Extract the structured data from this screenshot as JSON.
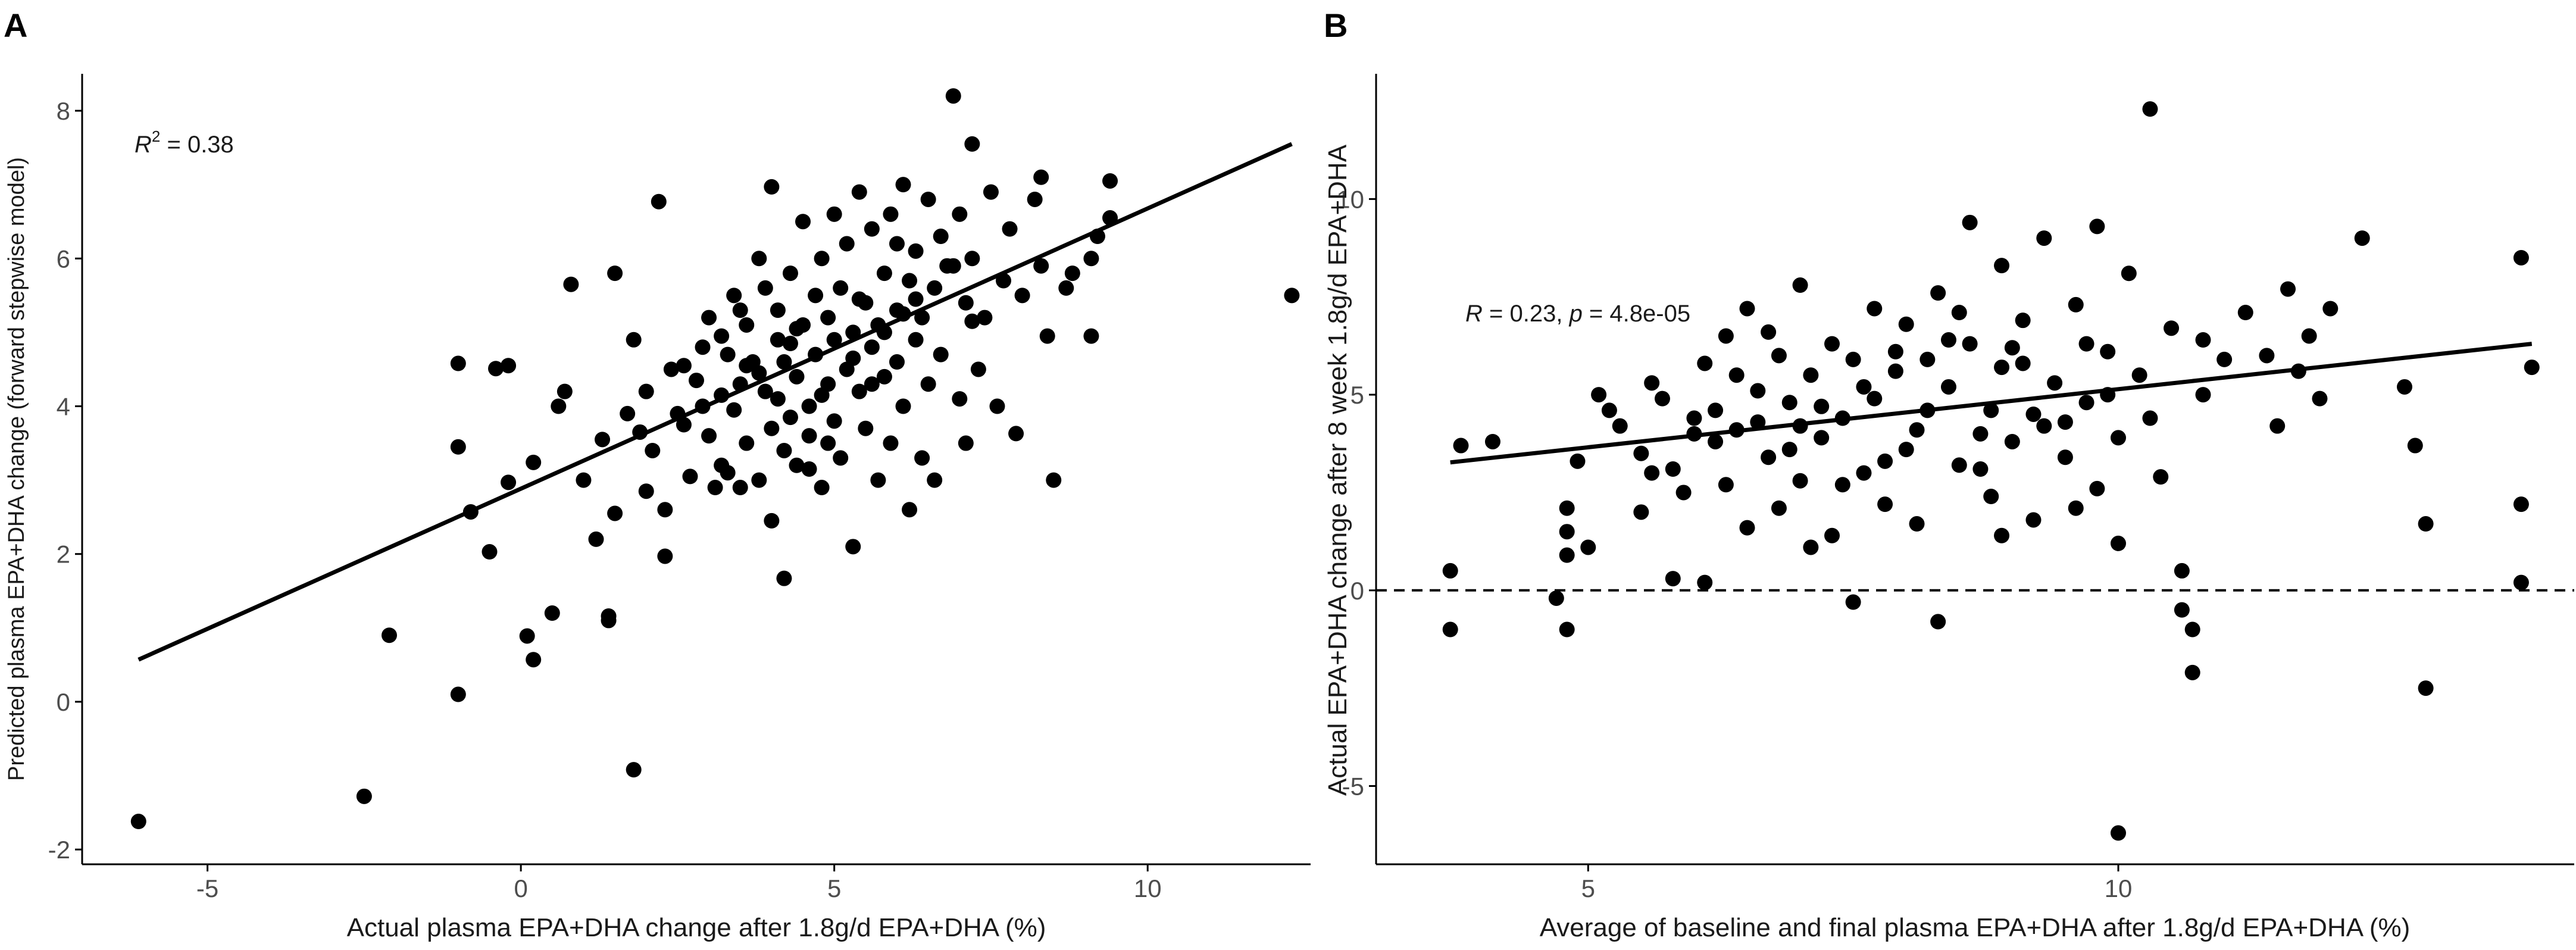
{
  "chart_data": [
    {
      "type": "scatter",
      "panel": "A",
      "xlabel": "Actual plasma EPA+DHA change after 1.8g/d EPA+DHA (%)",
      "ylabel": "Predicted plasma EPA+DHA change (forward stepwise model)",
      "xlim": [
        -7,
        12.6
      ],
      "ylim": [
        -2.2,
        8.5
      ],
      "xticks": [
        -5,
        0,
        5,
        10
      ],
      "yticks": [
        -2,
        0,
        2,
        4,
        6,
        8
      ],
      "annotation": {
        "prefix": "R",
        "sup": "2",
        "text": " = 0.38"
      },
      "regression_line": {
        "x": [
          -6.1,
          12.3
        ],
        "y": [
          0.57,
          7.55
        ]
      },
      "points": [
        [
          -6.1,
          -1.62
        ],
        [
          -2.5,
          -1.28
        ],
        [
          -2.1,
          0.9
        ],
        [
          -1.0,
          4.58
        ],
        [
          -1.0,
          3.45
        ],
        [
          -1.0,
          0.1
        ],
        [
          -0.8,
          2.57
        ],
        [
          -0.5,
          2.03
        ],
        [
          -0.4,
          4.51
        ],
        [
          -0.2,
          4.55
        ],
        [
          -0.2,
          2.97
        ],
        [
          0.1,
          0.89
        ],
        [
          0.2,
          3.24
        ],
        [
          0.2,
          0.57
        ],
        [
          0.5,
          1.2
        ],
        [
          0.6,
          4.0
        ],
        [
          0.7,
          4.2
        ],
        [
          0.8,
          5.65
        ],
        [
          1.0,
          3.0
        ],
        [
          1.2,
          2.2
        ],
        [
          1.3,
          3.55
        ],
        [
          1.4,
          1.1
        ],
        [
          1.4,
          1.16
        ],
        [
          1.5,
          5.8
        ],
        [
          1.5,
          2.55
        ],
        [
          1.7,
          3.9
        ],
        [
          1.8,
          -0.92
        ],
        [
          1.8,
          4.9
        ],
        [
          1.9,
          3.65
        ],
        [
          2.0,
          2.85
        ],
        [
          2.0,
          4.2
        ],
        [
          2.1,
          3.4
        ],
        [
          2.2,
          6.77
        ],
        [
          2.3,
          1.97
        ],
        [
          2.3,
          2.6
        ],
        [
          2.4,
          4.5
        ],
        [
          2.5,
          3.9
        ],
        [
          2.6,
          4.55
        ],
        [
          2.7,
          3.05
        ],
        [
          2.8,
          4.35
        ],
        [
          2.9,
          4.0
        ],
        [
          3.0,
          5.2
        ],
        [
          3.0,
          3.6
        ],
        [
          3.1,
          2.9
        ],
        [
          3.2,
          4.95
        ],
        [
          3.2,
          3.2
        ],
        [
          3.3,
          4.7
        ],
        [
          3.4,
          5.5
        ],
        [
          3.4,
          3.95
        ],
        [
          3.5,
          4.3
        ],
        [
          3.5,
          2.9
        ],
        [
          3.6,
          5.1
        ],
        [
          3.6,
          3.5
        ],
        [
          3.7,
          4.6
        ],
        [
          3.8,
          6.0
        ],
        [
          3.8,
          3.0
        ],
        [
          3.9,
          4.2
        ],
        [
          3.9,
          5.6
        ],
        [
          4.0,
          3.7
        ],
        [
          4.0,
          2.45
        ],
        [
          4.0,
          6.97
        ],
        [
          4.1,
          4.1
        ],
        [
          4.1,
          5.3
        ],
        [
          4.2,
          1.67
        ],
        [
          4.2,
          4.6
        ],
        [
          4.3,
          3.85
        ],
        [
          4.3,
          5.8
        ],
        [
          4.4,
          4.4
        ],
        [
          4.4,
          3.2
        ],
        [
          4.5,
          5.1
        ],
        [
          4.5,
          6.5
        ],
        [
          4.6,
          4.0
        ],
        [
          4.6,
          3.6
        ],
        [
          4.7,
          5.5
        ],
        [
          4.7,
          4.7
        ],
        [
          4.8,
          2.9
        ],
        [
          4.8,
          6.0
        ],
        [
          4.9,
          4.3
        ],
        [
          4.9,
          5.2
        ],
        [
          5.0,
          3.8
        ],
        [
          5.0,
          4.9
        ],
        [
          5.1,
          5.6
        ],
        [
          5.1,
          3.3
        ],
        [
          5.2,
          6.2
        ],
        [
          5.2,
          4.5
        ],
        [
          5.3,
          2.1
        ],
        [
          5.3,
          5.0
        ],
        [
          5.4,
          4.2
        ],
        [
          5.4,
          6.9
        ],
        [
          5.5,
          5.4
        ],
        [
          5.5,
          3.7
        ],
        [
          5.6,
          4.8
        ],
        [
          5.6,
          6.4
        ],
        [
          5.7,
          5.1
        ],
        [
          5.7,
          3.0
        ],
        [
          5.8,
          4.4
        ],
        [
          5.8,
          5.8
        ],
        [
          5.9,
          6.6
        ],
        [
          5.9,
          3.5
        ],
        [
          6.0,
          4.6
        ],
        [
          6.0,
          5.3
        ],
        [
          6.1,
          7.0
        ],
        [
          6.1,
          4.0
        ],
        [
          6.2,
          5.7
        ],
        [
          6.2,
          2.6
        ],
        [
          6.3,
          4.9
        ],
        [
          6.3,
          6.1
        ],
        [
          6.4,
          5.2
        ],
        [
          6.4,
          3.3
        ],
        [
          6.5,
          6.8
        ],
        [
          6.5,
          4.3
        ],
        [
          6.6,
          5.6
        ],
        [
          6.6,
          3.0
        ],
        [
          6.7,
          6.3
        ],
        [
          6.7,
          4.7
        ],
        [
          6.8,
          5.9
        ],
        [
          6.9,
          8.2
        ],
        [
          7.0,
          4.1
        ],
        [
          7.0,
          6.6
        ],
        [
          7.1,
          5.4
        ],
        [
          7.1,
          3.5
        ],
        [
          7.2,
          7.55
        ],
        [
          7.2,
          6.0
        ],
        [
          7.3,
          4.5
        ],
        [
          7.4,
          5.2
        ],
        [
          7.5,
          6.9
        ],
        [
          7.6,
          4.0
        ],
        [
          7.7,
          5.7
        ],
        [
          7.8,
          6.4
        ],
        [
          7.9,
          3.63
        ],
        [
          8.0,
          5.5
        ],
        [
          8.2,
          6.8
        ],
        [
          8.3,
          5.9
        ],
        [
          8.3,
          7.1
        ],
        [
          8.4,
          4.95
        ],
        [
          8.5,
          3.0
        ],
        [
          8.7,
          5.6
        ],
        [
          8.8,
          5.8
        ],
        [
          9.1,
          4.95
        ],
        [
          9.1,
          6.0
        ],
        [
          9.2,
          6.3
        ],
        [
          9.4,
          6.55
        ],
        [
          9.4,
          7.05
        ],
        [
          12.3,
          5.5
        ],
        [
          3.2,
          4.15
        ],
        [
          3.6,
          4.55
        ],
        [
          4.1,
          4.9
        ],
        [
          4.4,
          5.05
        ],
        [
          4.9,
          3.5
        ],
        [
          5.3,
          4.65
        ],
        [
          5.8,
          5.0
        ],
        [
          6.1,
          5.25
        ],
        [
          2.6,
          3.75
        ],
        [
          2.9,
          4.8
        ],
        [
          3.3,
          3.1
        ],
        [
          3.8,
          4.45
        ],
        [
          4.3,
          4.85
        ],
        [
          4.8,
          4.15
        ],
        [
          5.4,
          5.45
        ],
        [
          6.3,
          5.45
        ],
        [
          6.9,
          5.9
        ],
        [
          7.2,
          5.15
        ],
        [
          5.6,
          4.3
        ],
        [
          4.6,
          3.15
        ],
        [
          3.5,
          5.3
        ],
        [
          5.0,
          6.6
        ],
        [
          6.0,
          6.2
        ],
        [
          4.2,
          3.4
        ]
      ]
    },
    {
      "type": "scatter",
      "panel": "B",
      "xlabel": "Average of baseline and final plasma EPA+DHA after 1.8g/d EPA+DHA (%)",
      "ylabel": "Actual EPA+DHA change after 8 week 1.8g/d EPA+DHA",
      "xlim": [
        3.0,
        14.3
      ],
      "ylim": [
        -7.0,
        13.2
      ],
      "xticks": [
        5,
        10
      ],
      "yticks": [
        -5,
        0,
        5,
        10
      ],
      "reference_line_y": 0,
      "annotation": {
        "r": "R",
        "p": "p",
        "text1": " = 0.23, ",
        "text2": " = 4.8e-05"
      },
      "regression_line": {
        "x": [
          3.7,
          13.9
        ],
        "y": [
          3.27,
          6.3
        ]
      },
      "points": [
        [
          3.7,
          0.5
        ],
        [
          3.7,
          -1.0
        ],
        [
          3.8,
          3.7
        ],
        [
          4.1,
          3.8
        ],
        [
          4.7,
          -0.2
        ],
        [
          4.8,
          -1.0
        ],
        [
          4.8,
          2.1
        ],
        [
          4.8,
          1.5
        ],
        [
          4.8,
          0.9
        ],
        [
          4.9,
          3.3
        ],
        [
          5.0,
          1.1
        ],
        [
          5.1,
          5.0
        ],
        [
          5.2,
          4.6
        ],
        [
          5.3,
          4.2
        ],
        [
          5.5,
          3.5
        ],
        [
          5.5,
          2.0
        ],
        [
          5.6,
          5.3
        ],
        [
          5.7,
          4.9
        ],
        [
          5.8,
          3.1
        ],
        [
          5.8,
          0.3
        ],
        [
          5.9,
          2.5
        ],
        [
          6.0,
          4.4
        ],
        [
          6.1,
          5.8
        ],
        [
          6.1,
          0.2
        ],
        [
          6.2,
          3.8
        ],
        [
          6.3,
          6.5
        ],
        [
          6.3,
          2.7
        ],
        [
          6.4,
          4.1
        ],
        [
          6.5,
          7.2
        ],
        [
          6.5,
          1.6
        ],
        [
          6.6,
          5.1
        ],
        [
          6.7,
          3.4
        ],
        [
          6.8,
          6.0
        ],
        [
          6.8,
          2.1
        ],
        [
          6.9,
          4.8
        ],
        [
          7.0,
          7.8
        ],
        [
          7.0,
          2.8
        ],
        [
          7.1,
          5.5
        ],
        [
          7.2,
          3.9
        ],
        [
          7.3,
          6.3
        ],
        [
          7.3,
          1.4
        ],
        [
          7.4,
          4.4
        ],
        [
          7.5,
          -0.3
        ],
        [
          7.5,
          5.9
        ],
        [
          7.6,
          3.0
        ],
        [
          7.7,
          7.2
        ],
        [
          7.7,
          4.9
        ],
        [
          7.8,
          2.2
        ],
        [
          7.9,
          5.6
        ],
        [
          8.0,
          3.6
        ],
        [
          8.0,
          6.8
        ],
        [
          8.1,
          1.7
        ],
        [
          8.2,
          4.6
        ],
        [
          8.3,
          7.6
        ],
        [
          8.3,
          -0.8
        ],
        [
          8.4,
          5.2
        ],
        [
          8.5,
          3.2
        ],
        [
          8.6,
          6.3
        ],
        [
          8.6,
          9.4
        ],
        [
          8.7,
          4.0
        ],
        [
          8.8,
          2.4
        ],
        [
          8.9,
          8.3
        ],
        [
          8.9,
          5.7
        ],
        [
          9.0,
          3.8
        ],
        [
          9.1,
          6.9
        ],
        [
          9.2,
          4.5
        ],
        [
          9.2,
          1.8
        ],
        [
          9.3,
          9.0
        ],
        [
          9.4,
          5.3
        ],
        [
          9.5,
          3.4
        ],
        [
          9.6,
          7.3
        ],
        [
          9.7,
          4.8
        ],
        [
          9.8,
          2.6
        ],
        [
          9.8,
          9.3
        ],
        [
          9.9,
          6.1
        ],
        [
          10.0,
          3.9
        ],
        [
          10.0,
          -6.2
        ],
        [
          10.0,
          1.2
        ],
        [
          10.1,
          8.1
        ],
        [
          10.2,
          5.5
        ],
        [
          10.3,
          12.3
        ],
        [
          10.4,
          2.9
        ],
        [
          10.5,
          6.7
        ],
        [
          10.6,
          -0.5
        ],
        [
          10.6,
          0.5
        ],
        [
          10.7,
          -1.0
        ],
        [
          10.7,
          -2.1
        ],
        [
          10.8,
          6.4
        ],
        [
          11.0,
          5.9
        ],
        [
          11.2,
          7.1
        ],
        [
          11.4,
          6.0
        ],
        [
          11.5,
          4.2
        ],
        [
          11.6,
          7.7
        ],
        [
          11.7,
          5.6
        ],
        [
          11.8,
          6.5
        ],
        [
          11.9,
          4.9
        ],
        [
          12.0,
          7.2
        ],
        [
          12.3,
          9.0
        ],
        [
          12.7,
          5.2
        ],
        [
          12.8,
          3.7
        ],
        [
          12.9,
          -2.5
        ],
        [
          12.9,
          1.7
        ],
        [
          13.8,
          8.5
        ],
        [
          13.8,
          2.2
        ],
        [
          13.8,
          0.2
        ],
        [
          13.9,
          5.7
        ],
        [
          6.0,
          4.0
        ],
        [
          6.4,
          5.5
        ],
        [
          6.9,
          3.6
        ],
        [
          7.2,
          4.7
        ],
        [
          7.6,
          5.2
        ],
        [
          8.1,
          4.1
        ],
        [
          8.4,
          6.4
        ],
        [
          8.8,
          4.6
        ],
        [
          9.1,
          5.8
        ],
        [
          9.5,
          4.3
        ],
        [
          9.9,
          5.0
        ],
        [
          7.0,
          4.2
        ],
        [
          7.8,
          3.3
        ],
        [
          8.2,
          5.9
        ],
        [
          8.7,
          3.1
        ],
        [
          9.3,
          4.2
        ],
        [
          9.7,
          6.3
        ],
        [
          6.7,
          6.6
        ],
        [
          7.4,
          2.7
        ],
        [
          8.5,
          7.1
        ],
        [
          9.0,
          6.2
        ],
        [
          6.2,
          4.6
        ],
        [
          5.6,
          3.0
        ],
        [
          10.3,
          4.4
        ],
        [
          10.8,
          5.0
        ],
        [
          7.9,
          6.1
        ],
        [
          8.9,
          1.4
        ],
        [
          9.6,
          2.1
        ],
        [
          7.1,
          1.1
        ],
        [
          6.6,
          4.3
        ]
      ]
    }
  ]
}
